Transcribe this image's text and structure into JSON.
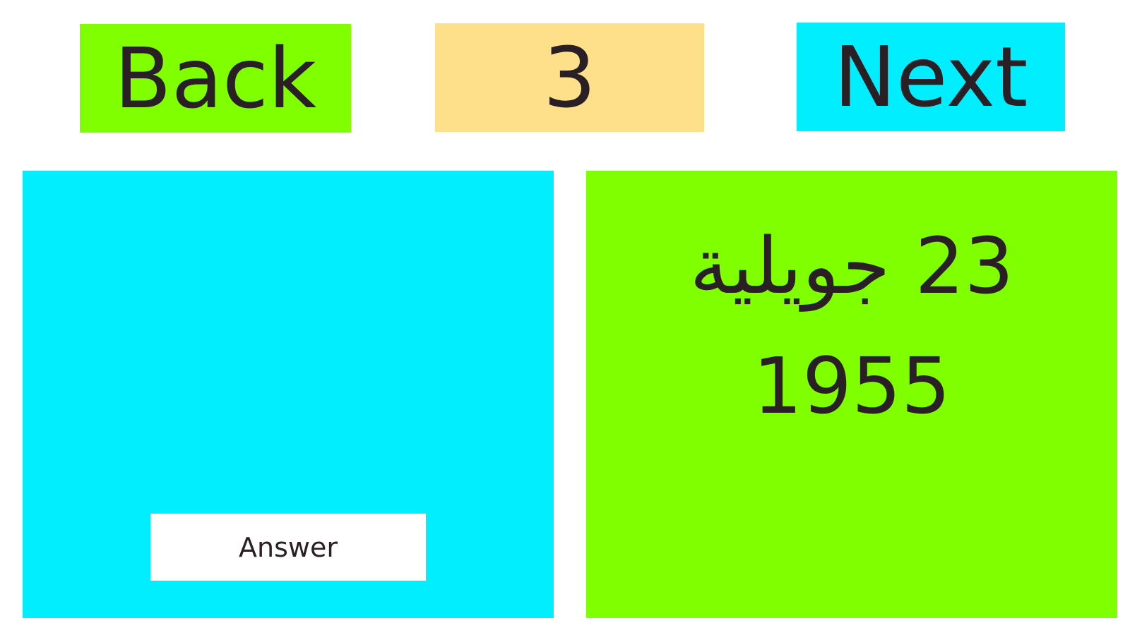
{
  "nav": {
    "back_label": "Back",
    "counter": "3",
    "next_label": "Next"
  },
  "card": {
    "question_text": "",
    "answer_button_label": "Answer",
    "answer_text": "23 جويلية 1955"
  },
  "colors": {
    "green": "#80ff00",
    "cyan": "#00eeff",
    "counter_bg": "#ffe08a"
  }
}
